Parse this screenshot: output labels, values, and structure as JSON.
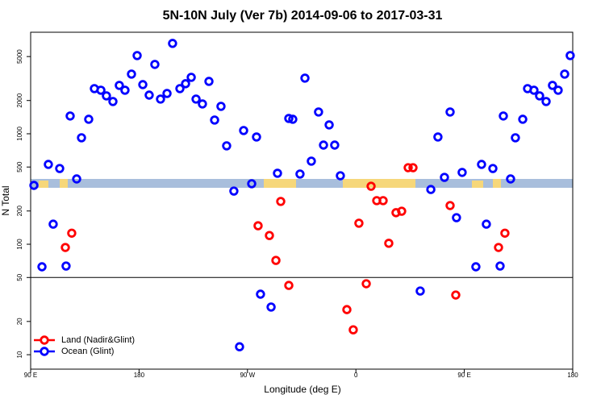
{
  "chart_data": {
    "type": "scatter",
    "title": "5N-10N July (Ver 7b)   2014-09-06 to 2017-03-31",
    "x_label": "Longitude (deg E)",
    "y_label": "N Total",
    "log_y": true,
    "legend": "bottom-left",
    "reference_line": 50,
    "xlim": [
      90,
      540
    ],
    "ylim": [
      7.4,
      8300
    ],
    "xticks": [
      {
        "value": 90,
        "label": "90 E"
      },
      180,
      {
        "value": 270,
        "label": "90 W"
      },
      {
        "value": 360,
        "label": "0"
      },
      {
        "value": 450,
        "label": "90 E"
      },
      {
        "value": 540,
        "label": "180"
      }
    ],
    "yticks": [
      10,
      20,
      50,
      100,
      200,
      500,
      1000,
      2000,
      5000
    ],
    "series": [
      {
        "name": "Land (Nadir&Glint)",
        "color": "#ff0000",
        "x": [
          118.8,
          124.1,
          278.8,
          288.2,
          293.6,
          297.6,
          304.3,
          352.5,
          357.8,
          362.5,
          368.6,
          372.6,
          377.3,
          382.6,
          387.3,
          393.3,
          398.0,
          403.4,
          407.4,
          438.2,
          442.9,
          478.4,
          483.7
        ],
        "values": [
          93.5,
          126,
          147,
          120,
          71.4,
          244,
          42.4,
          25.6,
          16.8,
          155,
          43.9,
          335,
          248,
          248,
          102,
          193,
          199,
          493,
          493,
          224,
          34.7,
          93.5,
          126
        ]
      },
      {
        "name": "Ocean (Glint)",
        "color": "#0000ff",
        "x": [
          92.7,
          99.4,
          104.7,
          108.7,
          114.1,
          119.4,
          122.8,
          128.2,
          132.2,
          138.2,
          142.9,
          148.3,
          152.9,
          158.3,
          163.6,
          168.3,
          173.7,
          178.4,
          183.1,
          188.4,
          193.1,
          197.8,
          203.2,
          207.8,
          213.9,
          218.6,
          223.3,
          227.3,
          232.6,
          238.0,
          242.7,
          248.0,
          252.7,
          258.7,
          263.4,
          266.8,
          273.5,
          277.5,
          280.8,
          289.6,
          294.9,
          304.3,
          307.6,
          313.6,
          317.7,
          323.0,
          329.0,
          333.1,
          337.8,
          342.4,
          347.1,
          413.4,
          422.2,
          428.1,
          433.5,
          438.2,
          443.5,
          448.2,
          459.6,
          464.3,
          468.3,
          473.7,
          479.7,
          482.4,
          488.4,
          492.4,
          498.5,
          502.5,
          507.8,
          512.5,
          517.9,
          523.2,
          527.9,
          533.3,
          537.9
        ],
        "values": [
          341,
          62.5,
          528,
          152,
          485,
          63.5,
          1449,
          390,
          920,
          1353,
          2564,
          2478,
          2203,
          1959,
          2741,
          2478,
          3467,
          5105,
          2786,
          2239,
          4246,
          2061,
          2317,
          6577,
          2564,
          2838,
          3243,
          2061,
          1862,
          2980,
          1331,
          1771,
          778,
          303,
          11.8,
          1070,
          353,
          935,
          35.3,
          27.0,
          439,
          1376,
          1353,
          432,
          3190,
          565,
          1574,
          790,
          1203,
          790,
          417,
          37.7,
          313,
          935,
          403,
          1574,
          174,
          447,
          62.5,
          528,
          152,
          485,
          63.5,
          1449,
          390,
          920,
          1353,
          2564,
          2478,
          2203,
          1959,
          2741,
          2478,
          3467,
          5105
        ]
      }
    ]
  }
}
